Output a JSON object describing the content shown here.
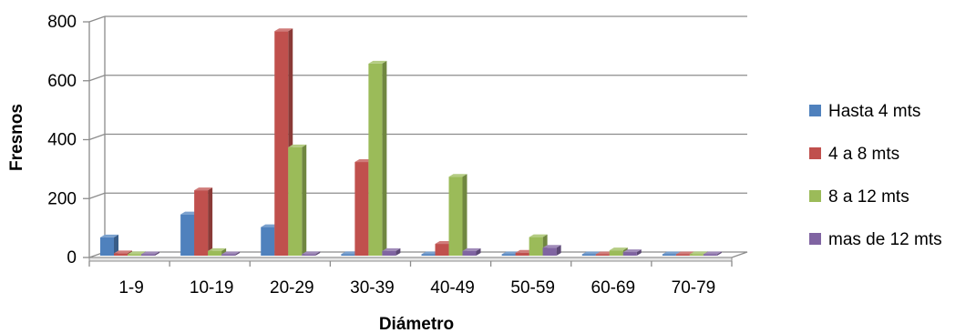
{
  "chart_data": {
    "type": "bar",
    "title": "",
    "xlabel": "Diámetro",
    "ylabel": "Fresnos",
    "ylim": [
      0,
      800
    ],
    "yticks": [
      0,
      200,
      400,
      600,
      800
    ],
    "grid": true,
    "legend_position": "right",
    "categories": [
      "1-9",
      "10-19",
      "20-29",
      "30-39",
      "40-49",
      "50-59",
      "60-69",
      "70-79"
    ],
    "series": [
      {
        "name": "Hasta 4 mts",
        "color": "#4F81BD",
        "values": [
          62,
          140,
          97,
          5,
          2,
          2,
          2,
          1
        ]
      },
      {
        "name": "4 a 8 mts",
        "color": "#C0504D",
        "values": [
          8,
          222,
          762,
          318,
          40,
          10,
          3,
          2
        ]
      },
      {
        "name": "8 a 12 mts",
        "color": "#9BBB59",
        "values": [
          5,
          16,
          368,
          652,
          268,
          63,
          18,
          5
        ]
      },
      {
        "name": "mas de 12 mts",
        "color": "#8064A2",
        "values": [
          2,
          4,
          5,
          16,
          16,
          27,
          12,
          4
        ]
      }
    ]
  }
}
